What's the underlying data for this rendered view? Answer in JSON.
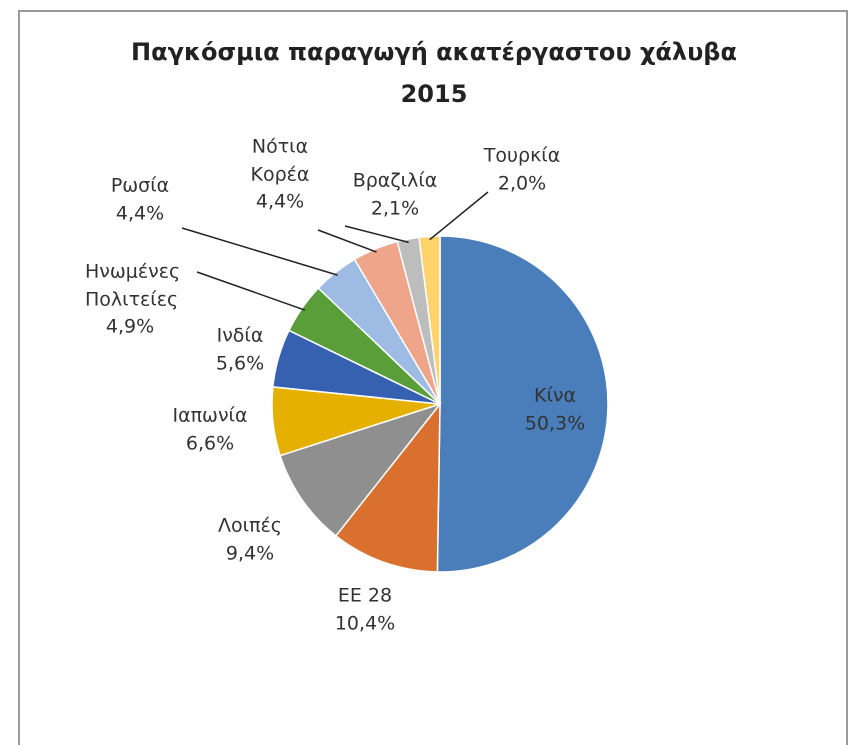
{
  "chart_data": {
    "type": "pie",
    "title": "Παγκόσμια παραγωγή ακατέργαστου χάλυβα",
    "subtitle": "2015",
    "categories": [
      "Κίνα",
      "ΕΕ 28",
      "Λοιπές",
      "Ιαπωνία",
      "Ινδία",
      "Ηνωμένες Πολιτείες",
      "Ρωσία",
      "Νότια Κορέα",
      "Βραζιλία",
      "Τουρκία"
    ],
    "values": [
      50.3,
      10.4,
      9.4,
      6.6,
      5.6,
      4.9,
      4.4,
      4.4,
      2.1,
      2.0
    ],
    "value_labels": [
      "50,3%",
      "10,4%",
      "9,4%",
      "6,6%",
      "5,6%",
      "4,9%",
      "4,4%",
      "4,4%",
      "2,1%",
      "2,0%"
    ],
    "colors": [
      "#4a7ebb",
      "#d9702e",
      "#8f8f8f",
      "#e6b000",
      "#3660b0",
      "#5a9e3a",
      "#9ebbe3",
      "#eea58a",
      "#bdbdbd",
      "#ffd36b"
    ]
  }
}
